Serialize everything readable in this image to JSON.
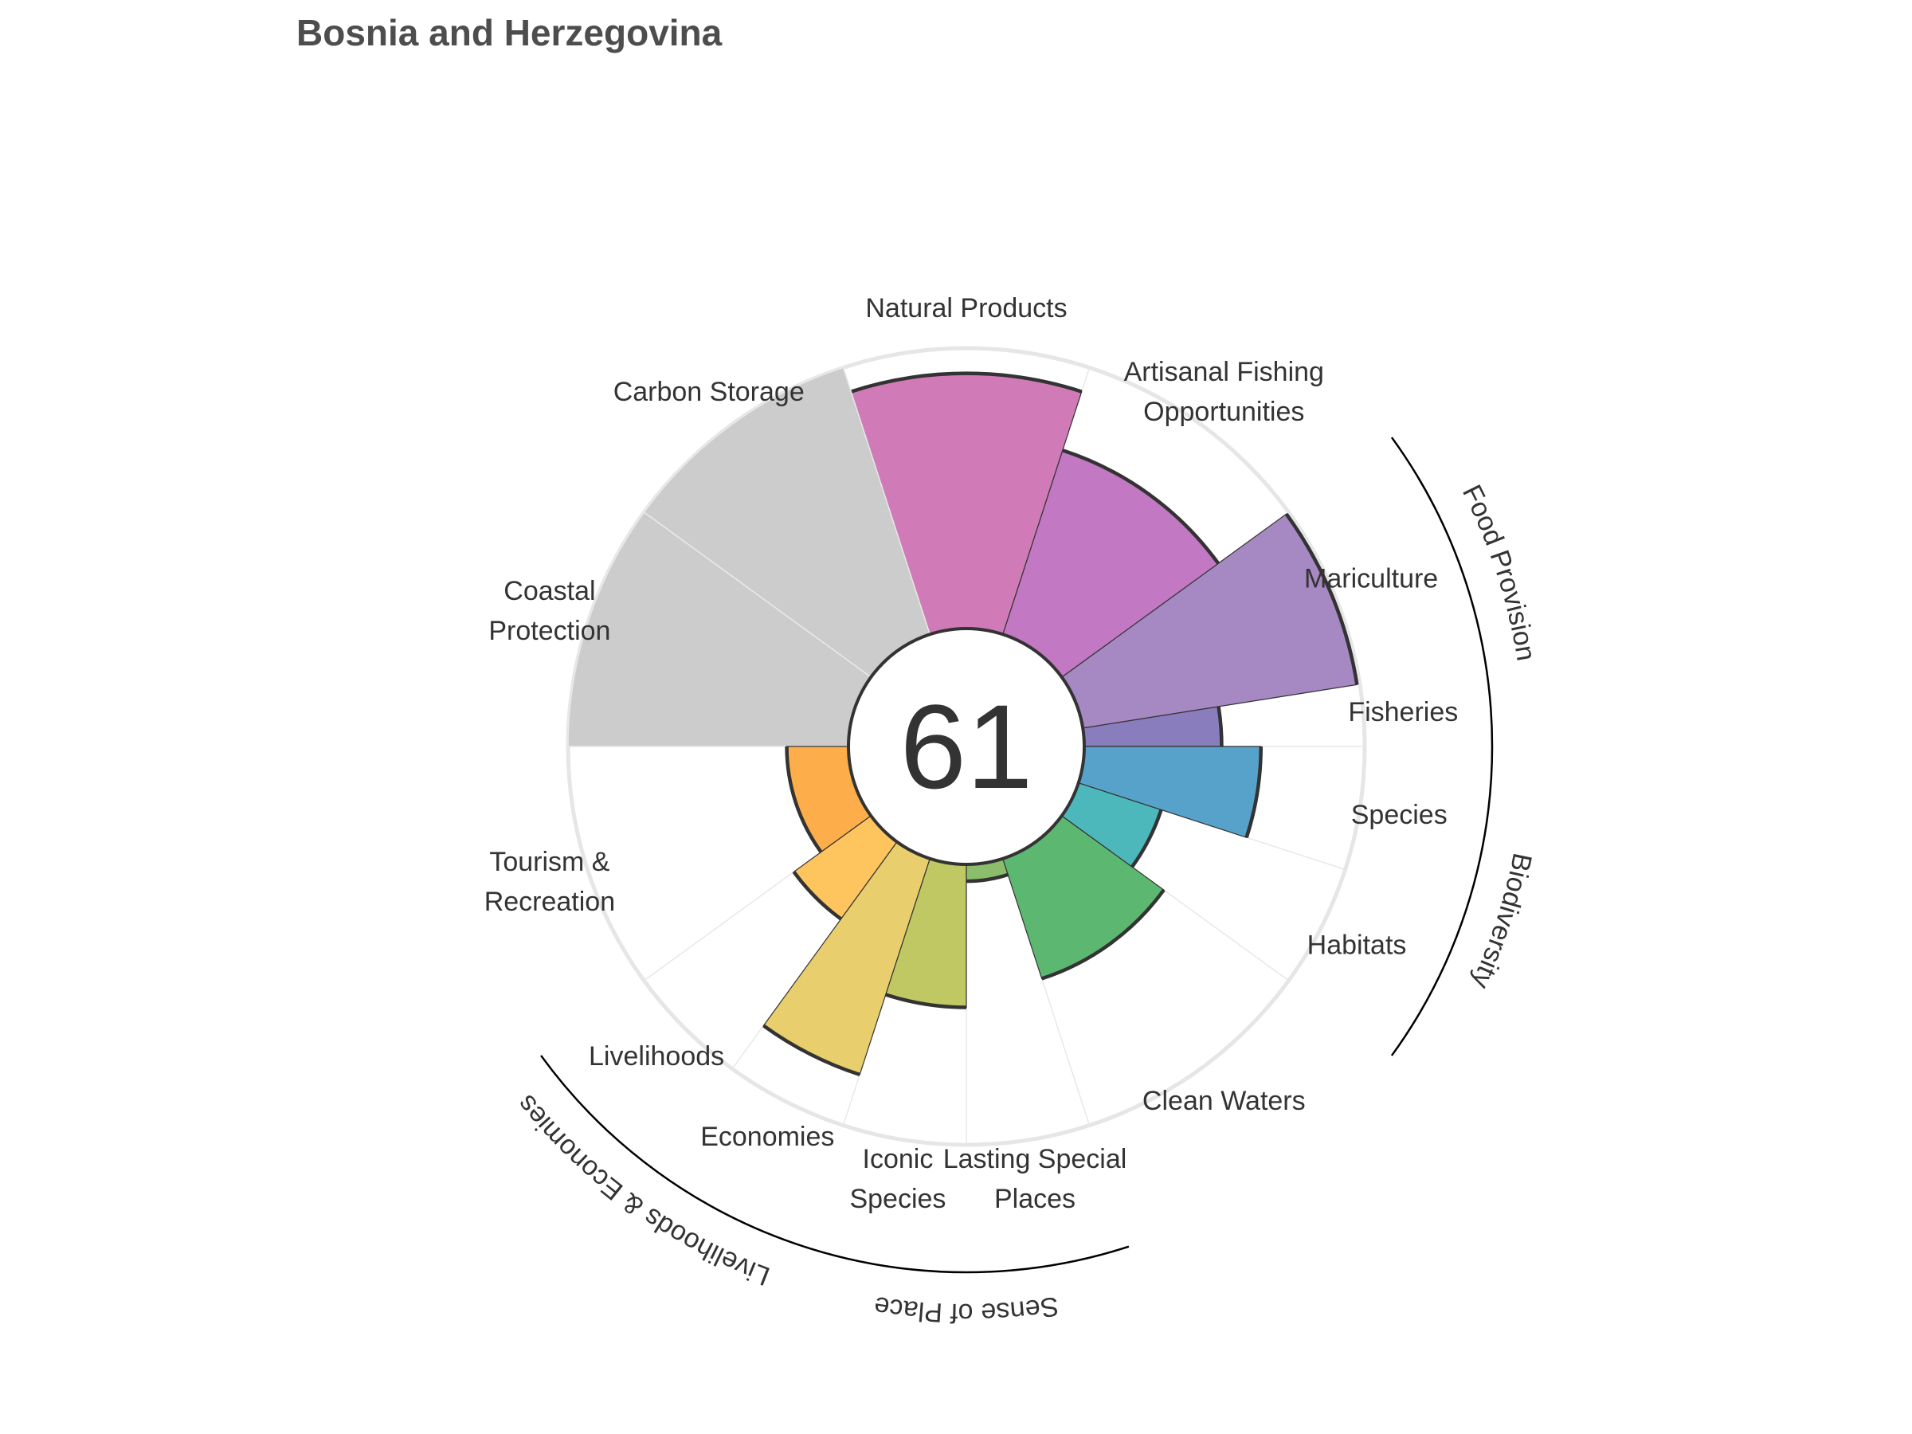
{
  "title": "Bosnia and Herzegovina",
  "chart_data": {
    "type": "flower",
    "title": "Bosnia and Herzegovina",
    "center_score": "61",
    "value_range": [
      0,
      100
    ],
    "petals": [
      {
        "name": "Fisheries",
        "lines": [
          "Fisheries"
        ],
        "value": 49,
        "color": "#8a7dbd",
        "weight": 0.25,
        "na": false
      },
      {
        "name": "Mariculture",
        "lines": [
          "Mariculture"
        ],
        "value": 99,
        "color": "#a688c3",
        "weight": 0.75,
        "na": false
      },
      {
        "name": "Artisanal Fishing Opportunities",
        "lines": [
          "Artisanal Fishing",
          "Opportunities"
        ],
        "value": 69,
        "color": "#c278c2",
        "weight": 1,
        "na": false
      },
      {
        "name": "Natural Products",
        "lines": [
          "Natural Products"
        ],
        "value": 91,
        "color": "#d17ab8",
        "weight": 1,
        "na": false
      },
      {
        "name": "Carbon Storage",
        "lines": [
          "Carbon Storage"
        ],
        "value": 100,
        "color": "#cccccc",
        "weight": 1,
        "na": true
      },
      {
        "name": "Coastal Protection",
        "lines": [
          "Coastal",
          "Protection"
        ],
        "value": 100,
        "color": "#cccccc",
        "weight": 1,
        "na": true
      },
      {
        "name": "Tourism & Recreation",
        "lines": [
          "Tourism &",
          "Recreation"
        ],
        "value": 22,
        "color": "#fdae4a",
        "weight": 1,
        "na": false
      },
      {
        "name": "Livelihoods",
        "lines": [
          "Livelihoods"
        ],
        "value": 34,
        "color": "#fec55e",
        "weight": 0.5,
        "na": false
      },
      {
        "name": "Economies",
        "lines": [
          "Economies"
        ],
        "value": 81,
        "color": "#e9ce6d",
        "weight": 0.5,
        "na": false
      },
      {
        "name": "Iconic Species",
        "lines": [
          "Iconic",
          "Species"
        ],
        "value": 51,
        "color": "#bfc862",
        "weight": 0.5,
        "na": false
      },
      {
        "name": "Lasting Special Places",
        "lines": [
          "Lasting Special",
          "Places"
        ],
        "value": 6,
        "color": "#8bbd6b",
        "weight": 0.5,
        "na": false
      },
      {
        "name": "Clean Waters",
        "lines": [
          "Clean Waters"
        ],
        "value": 45,
        "color": "#5cb870",
        "weight": 1,
        "na": false
      },
      {
        "name": "Habitats",
        "lines": [
          "Habitats"
        ],
        "value": 31,
        "color": "#4db8bc",
        "weight": 0.5,
        "na": false
      },
      {
        "name": "Species",
        "lines": [
          "Species"
        ],
        "value": 63,
        "color": "#57a2ca",
        "weight": 0.5,
        "na": false
      }
    ],
    "groups": [
      {
        "name": "Food Provision",
        "petals": [
          0,
          1
        ]
      },
      {
        "name": "Biodiversity",
        "petals": [
          12,
          13
        ]
      },
      {
        "name": "Livelihoods & Economies",
        "petals": [
          7,
          8
        ]
      },
      {
        "name": "Sense of Place",
        "petals": [
          9,
          10
        ]
      }
    ]
  }
}
